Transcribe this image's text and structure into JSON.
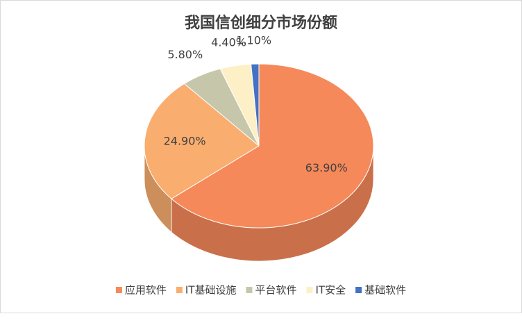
{
  "chart_data": {
    "type": "pie",
    "title": "我国信创细分市场份额",
    "categories": [
      "应用软件",
      "IT基础设施",
      "平台软件",
      "IT安全",
      "基础软件"
    ],
    "values": [
      63.9,
      24.9,
      5.8,
      4.4,
      1.1
    ],
    "value_labels": [
      "63.90%",
      "24.90%",
      "5.80%",
      "4.40%",
      "1.10%"
    ],
    "colors": [
      "#f5895a",
      "#f9ad6e",
      "#c6c7aa",
      "#fdf0c6",
      "#4472c4"
    ],
    "legend": "bottom"
  }
}
